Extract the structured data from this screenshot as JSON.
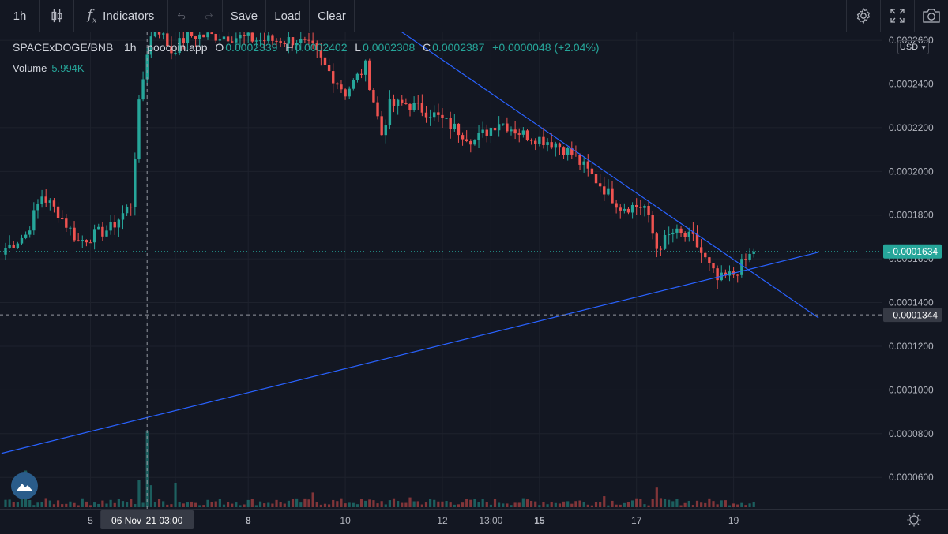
{
  "toolbar": {
    "interval": "1h",
    "indicators_label": "Indicators",
    "save_label": "Save",
    "load_label": "Load",
    "clear_label": "Clear"
  },
  "legend": {
    "symbol": "SPACExDOGE/BNB",
    "interval": "1h",
    "source": "poocoin.app",
    "o_label": "O",
    "open": "0.0002339",
    "h_label": "H",
    "high": "0.0002402",
    "l_label": "L",
    "low": "0.0002308",
    "c_label": "C",
    "close": "0.0002387",
    "change": "+0.0000048 (+2.04%)",
    "volume_label": "Volume",
    "volume_value": "5.994K"
  },
  "price_axis": {
    "currency": "USD",
    "last_price_label": "0.0001634",
    "crosshair_price_label": "0.0001344",
    "last_price_color": "#26a69a"
  },
  "colors": {
    "up": "#26a69a",
    "down": "#ef5350",
    "trendline": "#2962ff",
    "background": "#131722"
  },
  "chart_data": {
    "type": "candlestick",
    "title": "SPACExDOGE/BNB 1h poocoin.app",
    "ylim": [
      4.6e-05,
      0.000264
    ],
    "y_ticks": [
      "0.0002600",
      "0.0002400",
      "0.0002200",
      "0.0002000",
      "0.0001800",
      "0.0001600",
      "0.0001400",
      "0.0001200",
      "0.0001000",
      "0.0000800",
      "0.0000600"
    ],
    "x_ticks": [
      {
        "label": "5",
        "i": 21
      },
      {
        "label": "06 Nov '21",
        "i": 35
      },
      {
        "label": "03:00",
        "i": 42
      },
      {
        "label": "8",
        "i": 60
      },
      {
        "label": "10",
        "i": 84
      },
      {
        "label": "12",
        "i": 108
      },
      {
        "label": "13:00",
        "i": 120
      },
      {
        "label": "15",
        "i": 132
      },
      {
        "label": "17",
        "i": 156
      },
      {
        "label": "19",
        "i": 180
      }
    ],
    "crosshair_label": "06 Nov '21  03:00",
    "crosshair_index": 35,
    "last_price": 0.0001634,
    "crosshair_price": 0.0001344,
    "trendlines": [
      {
        "from": [
          -1,
          7.1e-05
        ],
        "to": [
          201,
          0.000163
        ]
      },
      {
        "from": [
          97,
          0.000265
        ],
        "to": [
          201,
          0.000133
        ]
      }
    ],
    "anchors": [
      [
        0,
        0.000165
      ],
      [
        5,
        0.000171
      ],
      [
        9,
        0.000189
      ],
      [
        13,
        0.000181
      ],
      [
        18,
        0.000168
      ],
      [
        26,
        0.000174
      ],
      [
        31,
        0.000185
      ],
      [
        33,
        0.00023
      ],
      [
        35,
        0.000255
      ],
      [
        37,
        0.000268
      ],
      [
        41,
        0.000255
      ],
      [
        45,
        0.000262
      ],
      [
        55,
        0.000262
      ],
      [
        63,
        0.00026
      ],
      [
        72,
        0.00026
      ],
      [
        76,
        0.000256
      ],
      [
        79,
        0.000248
      ],
      [
        84,
        0.000236
      ],
      [
        89,
        0.000248
      ],
      [
        93,
        0.000217
      ],
      [
        95,
        0.00023
      ],
      [
        99,
        0.000231
      ],
      [
        105,
        0.000227
      ],
      [
        110,
        0.000221
      ],
      [
        116,
        0.000214
      ],
      [
        122,
        0.000223
      ],
      [
        128,
        0.000217
      ],
      [
        132,
        0.000215
      ],
      [
        136,
        0.000213
      ],
      [
        140,
        0.000208
      ],
      [
        148,
        0.000192
      ],
      [
        152,
        0.000184
      ],
      [
        158,
        0.000184
      ],
      [
        161,
        0.000165
      ],
      [
        165,
        0.000172
      ],
      [
        170,
        0.000169
      ],
      [
        176,
        0.00015
      ],
      [
        180,
        0.000153
      ],
      [
        185,
        0.0001634
      ]
    ],
    "volume_spikes": [
      [
        5,
        0.3
      ],
      [
        35,
        0.62
      ],
      [
        33,
        0.22
      ],
      [
        36,
        0.18
      ],
      [
        42,
        0.2
      ],
      [
        76,
        0.12
      ],
      [
        100,
        0.08
      ],
      [
        161,
        0.16
      ],
      [
        148,
        0.09
      ]
    ],
    "last_volume": 5994
  }
}
